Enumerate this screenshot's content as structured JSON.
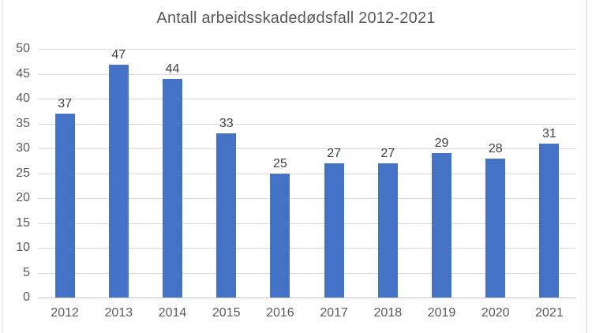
{
  "window": {
    "background": "#FFFFFF",
    "border_color": "#D9D9D9"
  },
  "chart_data": {
    "type": "bar",
    "title": "Antall arbeidsskadedødsfall 2012-2021",
    "categories": [
      "2012",
      "2013",
      "2014",
      "2015",
      "2016",
      "2017",
      "2018",
      "2019",
      "2020",
      "2021"
    ],
    "values": [
      37,
      47,
      44,
      33,
      25,
      27,
      27,
      29,
      28,
      31
    ],
    "xlabel": "",
    "ylabel": "",
    "ylim": [
      0,
      50
    ],
    "yticks": [
      0,
      5,
      10,
      15,
      20,
      25,
      30,
      35,
      40,
      45,
      50
    ],
    "grid": "horizontal",
    "legend_position": "none",
    "data_labels_shown": true,
    "colors": {
      "bar": "#4472C4",
      "gridline": "#D9D9D9",
      "axis_line": "#C9C9C9",
      "title_text": "#595959",
      "tick_text": "#595959",
      "data_label_text": "#404040",
      "frame_border": "#D9D9D9",
      "background": "#FFFFFF"
    }
  }
}
